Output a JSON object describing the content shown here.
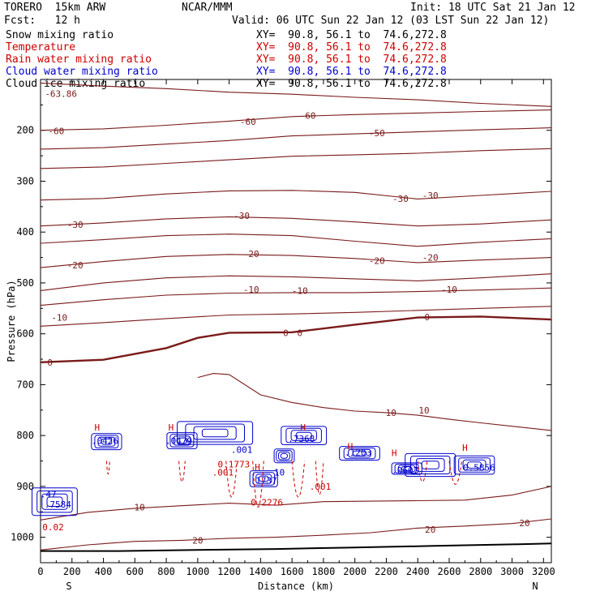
{
  "header": {
    "model": "TORERO  15km ARW",
    "org": "NCAR/MMM",
    "init": "Init: 18 UTC Sat 21 Jan 12",
    "fcst": "Fcst:   12 h",
    "valid": "Valid: 06 UTC Sun 22 Jan 12 (03 LST Sun 22 Jan 12)"
  },
  "legend": [
    {
      "name": "Snow mixing ratio",
      "range": "XY=  90.8, 56.1 to  74.6,272.8",
      "color": "#000000"
    },
    {
      "name": "Temperature",
      "range": "XY=  90.8, 56.1 to  74.6,272.8",
      "color": "#cc0000"
    },
    {
      "name": "Rain water mixing ratio",
      "range": "XY=  90.8, 56.1 to  74.6,272.8",
      "color": "#cc0000"
    },
    {
      "name": "Cloud water mixing ratio",
      "range": "XY=  90.8, 56.1 to  74.6,272.8",
      "color": "#0000cc"
    },
    {
      "name": "Cloud ice mixing ratio",
      "range": "XY=  90.8, 56.1 to  74.6,272.8",
      "color": "#000000"
    }
  ],
  "chart_data": {
    "type": "line",
    "title": "",
    "xlabel": "Distance (km)",
    "ylabel": "Pressure (hPa)",
    "x_endpoint_labels": {
      "left": "S",
      "right": "N"
    },
    "xlim": [
      0,
      3250
    ],
    "ylim": [
      1050,
      100
    ],
    "xticks": [
      0,
      200,
      400,
      600,
      800,
      1000,
      1200,
      1400,
      1600,
      1800,
      2000,
      2200,
      2400,
      2600,
      2800,
      3000,
      3200
    ],
    "yticks": [
      200,
      300,
      400,
      500,
      600,
      700,
      800,
      900,
      1000
    ],
    "colors": {
      "temperature": "#7a1a1a",
      "rain": "#cc0000",
      "cloud": "#0000cc",
      "ground": "#000000"
    },
    "temperature_isotherms": [
      {
        "name": "-60",
        "x": [
          0,
          400,
          800,
          1200,
          1600,
          2000,
          2400,
          2800,
          3250
        ],
        "p": [
          107,
          113,
          118,
          125,
          129,
          135,
          140,
          147,
          153
        ]
      },
      {
        "name": "-60",
        "x": [
          0,
          400,
          800,
          1200,
          1600,
          2000,
          2400,
          2800,
          3250
        ],
        "p": [
          200,
          197,
          190,
          182,
          173,
          169,
          166,
          163,
          160
        ]
      },
      {
        "name": "-50",
        "x": [
          0,
          400,
          800,
          1200,
          1600,
          2000,
          2400,
          2800,
          3250
        ],
        "p": [
          237,
          234,
          227,
          220,
          211,
          207,
          203,
          199,
          195
        ]
      },
      {
        "name": "-40",
        "x": [
          0,
          400,
          800,
          1200,
          1600,
          2000,
          2400,
          2800,
          3250
        ],
        "p": [
          275,
          272,
          265,
          258,
          251,
          248,
          245,
          240,
          236
        ]
      },
      {
        "name": "-30",
        "x": [
          0,
          400,
          800,
          1200,
          1600,
          2000,
          2400,
          2800,
          3250
        ],
        "p": [
          337,
          334,
          325,
          319,
          318,
          322,
          335,
          328,
          320
        ]
      },
      {
        "name": "-30",
        "x": [
          0,
          400,
          800,
          1200,
          1600,
          2000,
          2400,
          2800,
          3250
        ],
        "p": [
          388,
          382,
          374,
          370,
          373,
          380,
          388,
          384,
          376
        ]
      },
      {
        "name": "-20",
        "x": [
          0,
          400,
          800,
          1200,
          1600,
          2000,
          2400,
          2800,
          3250
        ],
        "p": [
          422,
          415,
          407,
          404,
          407,
          418,
          428,
          420,
          413
        ]
      },
      {
        "name": "-20",
        "x": [
          0,
          400,
          800,
          1200,
          1600,
          2000,
          2400,
          2800,
          3250
        ],
        "p": [
          470,
          458,
          448,
          444,
          446,
          452,
          460,
          455,
          450
        ]
      },
      {
        "name": "-10",
        "x": [
          0,
          400,
          800,
          1200,
          1600,
          2000,
          2400,
          2800,
          3250
        ],
        "p": [
          515,
          500,
          490,
          486,
          488,
          492,
          496,
          490,
          482
        ]
      },
      {
        "name": "-10",
        "x": [
          0,
          400,
          800,
          1200,
          1600,
          2000,
          2400,
          2800,
          3250
        ],
        "p": [
          544,
          533,
          524,
          520,
          519,
          519,
          517,
          514,
          510
        ]
      },
      {
        "name": "-10",
        "x": [
          0,
          400,
          800,
          1200,
          1600,
          2000,
          2400,
          2800,
          3250
        ],
        "p": [
          585,
          578,
          570,
          563,
          561,
          558,
          554,
          550,
          546
        ]
      },
      {
        "name": "0",
        "x": [
          0,
          400,
          800,
          1000,
          1200,
          1600,
          2000,
          2400,
          2800,
          3250
        ],
        "p": [
          656,
          651,
          628,
          608,
          598,
          597,
          582,
          568,
          566,
          572
        ],
        "bold": true
      },
      {
        "name": "10",
        "x": [
          1000,
          1100,
          1200,
          1400,
          1600,
          1800,
          2000,
          2200,
          2400,
          2600,
          2800,
          3250
        ],
        "p": [
          686,
          678,
          680,
          720,
          735,
          745,
          752,
          755,
          760,
          768,
          775,
          790
        ]
      },
      {
        "name": "10",
        "x": [
          0,
          300,
          600,
          900,
          1200,
          1500,
          1800,
          2100,
          2400,
          2700,
          3000,
          3250
        ],
        "p": [
          966,
          951,
          943,
          938,
          933,
          937,
          930,
          929,
          928,
          927,
          917,
          900
        ]
      },
      {
        "name": "20",
        "x": [
          0,
          300,
          600,
          900,
          1200,
          1500,
          1800,
          2100,
          2400,
          2700,
          3000,
          3250
        ],
        "p": [
          1025,
          1015,
          1008,
          1006,
          1002,
          1000,
          996,
          991,
          982,
          978,
          973,
          964
        ]
      }
    ],
    "temperature_labels": [
      {
        "text": "-63.86",
        "x": 130,
        "p": 128
      },
      {
        "text": "-60",
        "x": 100,
        "p": 201
      },
      {
        "text": "-60",
        "x": 1320,
        "p": 183
      },
      {
        "text": "-60",
        "x": 1700,
        "p": 171
      },
      {
        "text": "-50",
        "x": 2140,
        "p": 205
      },
      {
        "text": "-30",
        "x": 220,
        "p": 385
      },
      {
        "text": "-30",
        "x": 1280,
        "p": 368
      },
      {
        "text": "-30",
        "x": 2290,
        "p": 334
      },
      {
        "text": "-30",
        "x": 2480,
        "p": 328
      },
      {
        "text": "-20",
        "x": 220,
        "p": 465
      },
      {
        "text": "-20",
        "x": 1340,
        "p": 443
      },
      {
        "text": "-20",
        "x": 2140,
        "p": 456
      },
      {
        "text": "-20",
        "x": 2480,
        "p": 450
      },
      {
        "text": "-10",
        "x": 120,
        "p": 568
      },
      {
        "text": "-10",
        "x": 1340,
        "p": 513
      },
      {
        "text": "-10",
        "x": 1650,
        "p": 515
      },
      {
        "text": "-10",
        "x": 2600,
        "p": 513
      },
      {
        "text": "0",
        "x": 60,
        "p": 656
      },
      {
        "text": "0",
        "x": 1560,
        "p": 598
      },
      {
        "text": "0",
        "x": 1650,
        "p": 598
      },
      {
        "text": "0",
        "x": 2460,
        "p": 567
      },
      {
        "text": "10",
        "x": 2230,
        "p": 755
      },
      {
        "text": "10",
        "x": 2440,
        "p": 750
      },
      {
        "text": "10",
        "x": 630,
        "p": 941
      },
      {
        "text": "20",
        "x": 1000,
        "p": 1006
      },
      {
        "text": "20",
        "x": 2480,
        "p": 985
      },
      {
        "text": "20",
        "x": 3080,
        "p": 972
      }
    ],
    "rain_labels": [
      {
        "text": ".001",
        "x": 1160,
        "p": 872
      },
      {
        "text": ".001",
        "x": 1780,
        "p": 900
      },
      {
        "text": "0.2276",
        "x": 1440,
        "p": 931
      },
      {
        "text": "0.1773",
        "x": 1230,
        "p": 856
      },
      {
        "text": "0.02",
        "x": 80,
        "p": 980
      }
    ],
    "cloud_labels": [
      {
        "text": ".0426",
        "x": 410,
        "p": 810
      },
      {
        "text": ".0479",
        "x": 880,
        "p": 810
      },
      {
        "text": ".001",
        "x": 1280,
        "p": 828
      },
      {
        "text": ".7368",
        "x": 1660,
        "p": 806
      },
      {
        "text": ".1203",
        "x": 2020,
        "p": 833
      },
      {
        "text": ".0607",
        "x": 2320,
        "p": 868
      },
      {
        "text": "0.5856",
        "x": 2790,
        "p": 863
      },
      {
        "text": ".7584",
        "x": 110,
        "p": 935
      },
      {
        "text": ".47",
        "x": 50,
        "p": 915
      },
      {
        "text": ".1737",
        "x": 1420,
        "p": 888
      },
      {
        "text": "10",
        "x": 1520,
        "p": 872
      }
    ],
    "cloud_cells": [
      {
        "x": 420,
        "p": 812,
        "w": 60,
        "h": 35
      },
      {
        "x": 900,
        "p": 810,
        "w": 60,
        "h": 35
      },
      {
        "x": 1110,
        "p": 795,
        "w": 150,
        "h": 50
      },
      {
        "x": 1675,
        "p": 800,
        "w": 90,
        "h": 40
      },
      {
        "x": 1550,
        "p": 840,
        "w": 40,
        "h": 30
      },
      {
        "x": 1420,
        "p": 885,
        "w": 55,
        "h": 35
      },
      {
        "x": 2030,
        "p": 835,
        "w": 80,
        "h": 30
      },
      {
        "x": 2480,
        "p": 858,
        "w": 100,
        "h": 50
      },
      {
        "x": 2330,
        "p": 865,
        "w": 60,
        "h": 25
      },
      {
        "x": 2760,
        "p": 858,
        "w": 80,
        "h": 40
      },
      {
        "x": 90,
        "p": 930,
        "w": 90,
        "h": 60
      }
    ],
    "h_marks": [
      {
        "x": 360,
        "p": 790
      },
      {
        "x": 830,
        "p": 790
      },
      {
        "x": 1670,
        "p": 790
      },
      {
        "x": 1380,
        "p": 868
      },
      {
        "x": 2250,
        "p": 840
      },
      {
        "x": 2700,
        "p": 830
      },
      {
        "x": 1970,
        "p": 828
      }
    ],
    "ground": {
      "x": [
        0,
        500,
        1000,
        1500,
        2000,
        2500,
        3000,
        3250
      ],
      "p": [
        1027,
        1027,
        1025,
        1023,
        1020,
        1017,
        1014,
        1012
      ]
    }
  }
}
